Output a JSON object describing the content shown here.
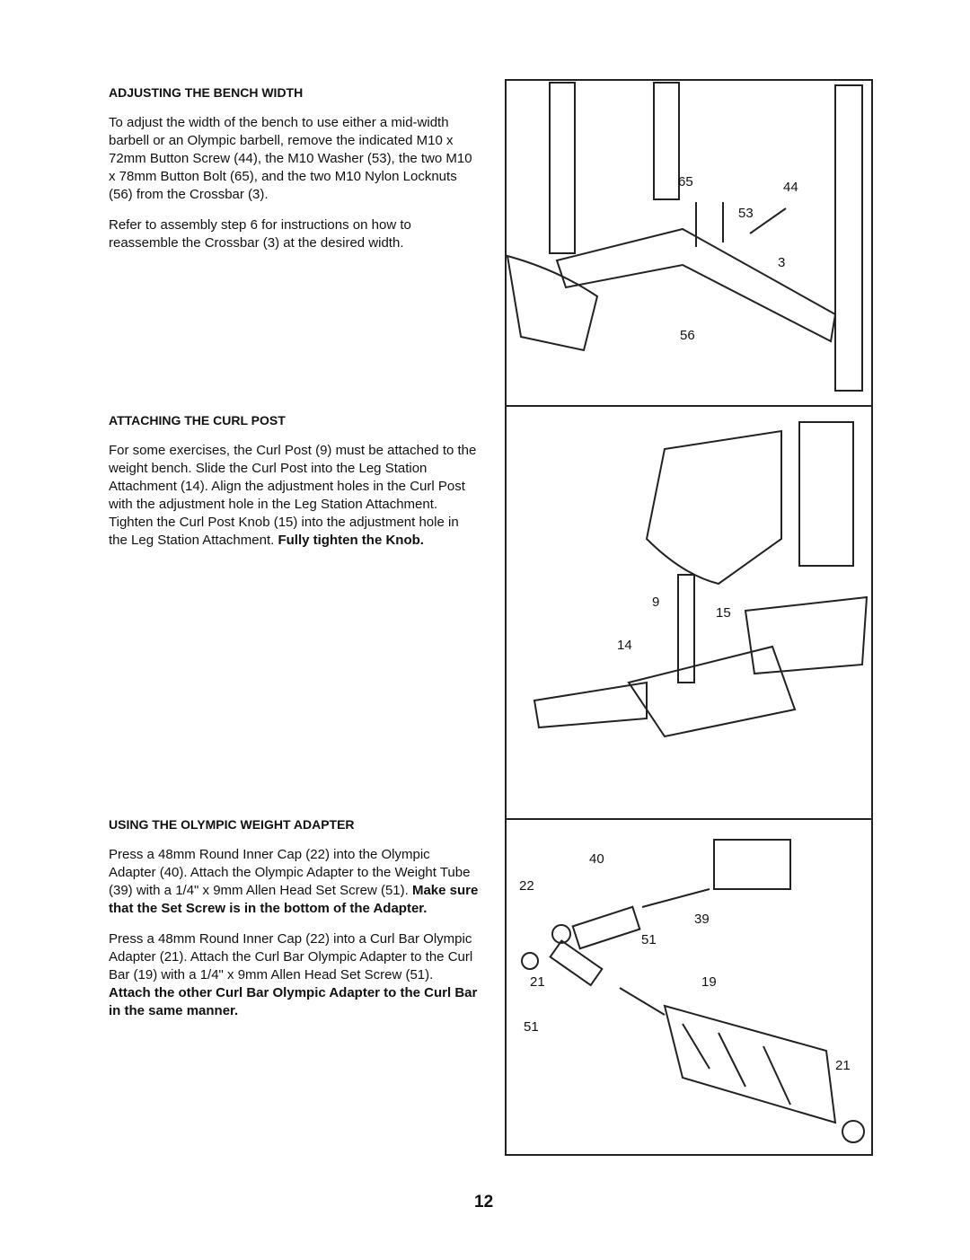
{
  "sections": [
    {
      "heading": "ADJUSTING THE BENCH WIDTH",
      "paragraphs": [
        {
          "text": "To adjust the width of the bench to use either a mid-width barbell or an Olympic barbell, remove the indicated M10 x 72mm Button Screw (44), the M10 Washer (53), the two M10 x 78mm Button Bolt (65), and the two M10 Nylon Locknuts (56) from the Crossbar (3)."
        },
        {
          "text": "Refer to assembly step 6 for instructions on how to reassemble the Crossbar (3) at the desired width."
        }
      ]
    },
    {
      "heading": "ATTACHING THE CURL POST",
      "paragraphs": [
        {
          "text": "For some exercises, the Curl Post (9) must be attached to the weight bench. Slide the Curl Post into the Leg Station Attachment (14). Align the adjustment holes in the Curl Post with the adjustment hole in the Leg Station Attachment. Tighten the Curl Post Knob (15) into the adjustment hole in the Leg Station Attachment.",
          "bold": "Fully tighten the Knob."
        }
      ]
    },
    {
      "heading": "USING THE OLYMPIC WEIGHT ADAPTER",
      "paragraphs": [
        {
          "text": "Press a 48mm Round Inner Cap (22) into the Olympic Adapter (40). Attach the Olympic Adapter to the Weight Tube (39) with a 1/4\" x 9mm Allen Head Set Screw (51).",
          "bold": "Make sure that the Set Screw is in the bottom of the Adapter."
        },
        {
          "text": "Press a 48mm Round Inner Cap (22) into a Curl Bar Olympic Adapter (21). Attach the Curl Bar Olympic Adapter to the Curl Bar (19) with a 1/4\" x 9mm Allen Head Set Screw (51).",
          "bold": "Attach the other Curl Bar Olympic Adapter to the Curl Bar in the same manner."
        }
      ]
    }
  ],
  "figures": [
    {
      "labels": [
        "65",
        "44",
        "53",
        "3",
        "56"
      ]
    },
    {
      "labels": [
        "9",
        "15",
        "14"
      ]
    },
    {
      "labels": [
        "40",
        "22",
        "39",
        "51",
        "21",
        "19",
        "51",
        "21"
      ]
    }
  ],
  "page_number": "12"
}
